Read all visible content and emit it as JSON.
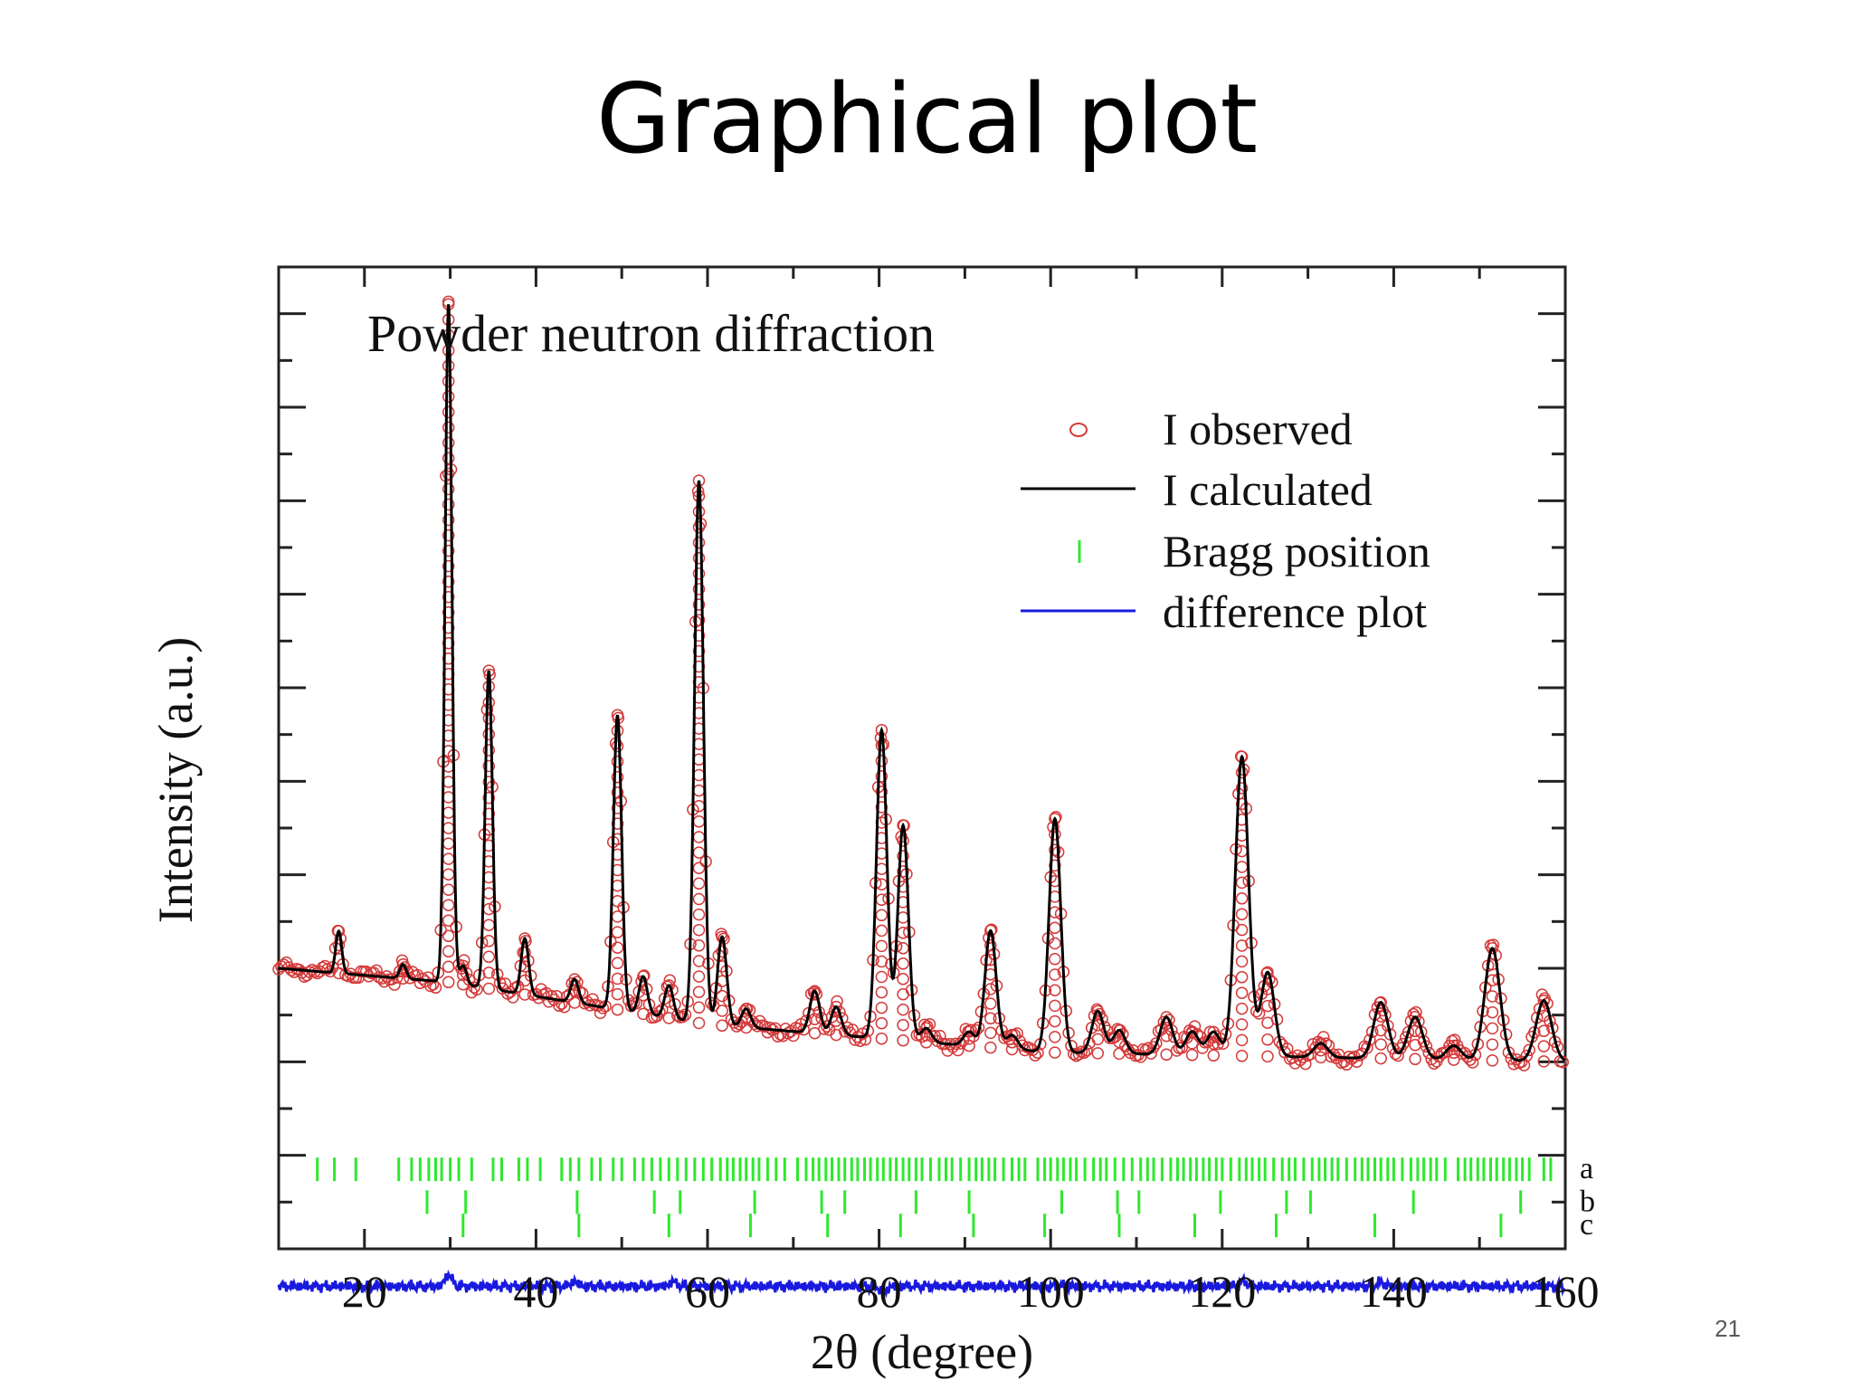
{
  "slide": {
    "title": "Graphical plot",
    "page_number": "21"
  },
  "chart_data": {
    "type": "line",
    "title": "Powder neutron diffraction",
    "xlabel": "2θ (degree)",
    "ylabel": "Intensity (a.u.)",
    "xlim": [
      10,
      160
    ],
    "ylim": [
      -2,
      19
    ],
    "x_ticks": [
      20,
      40,
      60,
      80,
      100,
      120,
      140,
      160
    ],
    "grid": false,
    "legend_position": "top-right",
    "legend": [
      {
        "label": "I observed",
        "marker": "open-circle",
        "color": "#d43a3a"
      },
      {
        "label": "I calculated",
        "marker": "line",
        "color": "#000000"
      },
      {
        "label": "Bragg position",
        "marker": "tick",
        "color": "#2ee82e"
      },
      {
        "label": "difference plot",
        "marker": "line",
        "color": "#1a1adf"
      }
    ],
    "colors": {
      "observed": "#d43a3a",
      "calculated": "#000000",
      "bragg": "#2ee82e",
      "difference": "#1a1adf"
    },
    "background_level": {
      "x": [
        10,
        30,
        60,
        100,
        160
      ],
      "y": [
        4.0,
        3.7,
        2.8,
        2.2,
        2.0
      ]
    },
    "peaks": [
      {
        "x": 17.0,
        "height": 0.9
      },
      {
        "x": 24.5,
        "height": 0.3
      },
      {
        "x": 29.8,
        "height": 14.5
      },
      {
        "x": 31.5,
        "height": 0.4
      },
      {
        "x": 34.5,
        "height": 6.8
      },
      {
        "x": 38.7,
        "height": 1.2
      },
      {
        "x": 44.5,
        "height": 0.5
      },
      {
        "x": 49.5,
        "height": 6.3
      },
      {
        "x": 52.5,
        "height": 0.8
      },
      {
        "x": 55.5,
        "height": 0.7
      },
      {
        "x": 59.0,
        "height": 11.6
      },
      {
        "x": 61.7,
        "height": 1.9
      },
      {
        "x": 64.5,
        "height": 0.4
      },
      {
        "x": 72.5,
        "height": 0.9
      },
      {
        "x": 75.0,
        "height": 0.6
      },
      {
        "x": 80.3,
        "height": 6.6
      },
      {
        "x": 82.8,
        "height": 4.6
      },
      {
        "x": 85.5,
        "height": 0.3
      },
      {
        "x": 90.5,
        "height": 0.3
      },
      {
        "x": 93.0,
        "height": 2.5
      },
      {
        "x": 95.5,
        "height": 0.3
      },
      {
        "x": 100.5,
        "height": 5.0
      },
      {
        "x": 105.5,
        "height": 0.9
      },
      {
        "x": 108.0,
        "height": 0.5
      },
      {
        "x": 113.5,
        "height": 0.8
      },
      {
        "x": 116.5,
        "height": 0.5
      },
      {
        "x": 119.0,
        "height": 0.5
      },
      {
        "x": 122.3,
        "height": 6.4
      },
      {
        "x": 125.3,
        "height": 1.8
      },
      {
        "x": 131.5,
        "height": 0.3
      },
      {
        "x": 138.5,
        "height": 1.2
      },
      {
        "x": 142.5,
        "height": 0.9
      },
      {
        "x": 147.0,
        "height": 0.3
      },
      {
        "x": 151.5,
        "height": 2.4
      },
      {
        "x": 157.5,
        "height": 1.3
      }
    ],
    "bragg_rows": [
      {
        "label": "a",
        "y": -0.3,
        "positions": [
          14.5,
          16.5,
          19,
          24,
          25.5,
          26.5,
          27.5,
          28.3,
          29,
          30,
          31,
          32.5,
          35,
          36,
          38,
          39,
          40.5,
          43,
          44,
          45,
          46.5,
          47.5,
          49,
          50,
          51.5,
          52.5,
          53.5,
          54.5,
          55.5,
          56.5,
          57.5,
          58.5,
          59.5,
          60.5,
          61.5,
          62.3,
          63,
          63.8,
          64.5,
          65.3,
          66,
          67,
          68,
          69,
          70.5,
          71.5,
          72.3,
          73,
          73.8,
          74.5,
          75.3,
          76,
          76.8,
          77.5,
          78.3,
          79,
          79.8,
          80.5,
          81.3,
          82,
          82.8,
          83.5,
          84.3,
          85,
          86,
          87,
          87.8,
          88.5,
          89.5,
          90.5,
          91.3,
          92,
          92.8,
          93.5,
          94.5,
          95.5,
          96.3,
          97,
          98.5,
          99.3,
          100,
          100.8,
          101.5,
          102.3,
          103,
          104,
          105,
          105.8,
          106.5,
          107.5,
          108.5,
          109.5,
          110.5,
          111.3,
          112,
          113,
          114,
          114.8,
          115.5,
          116.3,
          117,
          117.8,
          118.5,
          119.3,
          120,
          121,
          122,
          122.8,
          123.5,
          124.3,
          125,
          126,
          127,
          127.8,
          128.5,
          129.5,
          130.5,
          131.3,
          132,
          132.8,
          133.5,
          134.5,
          135.5,
          136.3,
          137,
          137.8,
          138.5,
          139.3,
          140,
          141,
          142,
          142.8,
          143.5,
          144.3,
          145,
          146,
          147.5,
          148.3,
          149,
          149.8,
          150.5,
          151.3,
          152,
          152.8,
          153.5,
          154.3,
          155,
          155.8,
          157.5,
          158.3
        ]
      },
      {
        "label": "b",
        "y": -1.0,
        "positions": [
          27.3,
          31.8,
          44.8,
          53.8,
          56.8,
          65.5,
          73.3,
          76.0,
          84.3,
          90.5,
          101.3,
          107.8,
          110.3,
          119.8,
          127.5,
          130.3,
          142.3,
          154.8
        ]
      },
      {
        "label": "c",
        "y": -1.5,
        "positions": [
          31.5,
          45.0,
          55.5,
          65.0,
          74.0,
          82.5,
          91.0,
          99.3,
          108.0,
          116.8,
          126.3,
          137.8,
          152.5
        ]
      }
    ],
    "difference_baseline": -2.8,
    "difference_features": [
      {
        "x": 29.8,
        "amplitude": 0.25
      },
      {
        "x": 44.5,
        "amplitude": 0.1
      },
      {
        "x": 56.0,
        "amplitude": 0.1
      },
      {
        "x": 80.5,
        "amplitude": -0.12
      },
      {
        "x": 122.5,
        "amplitude": 0.1
      },
      {
        "x": 138.5,
        "amplitude": 0.08
      }
    ]
  }
}
